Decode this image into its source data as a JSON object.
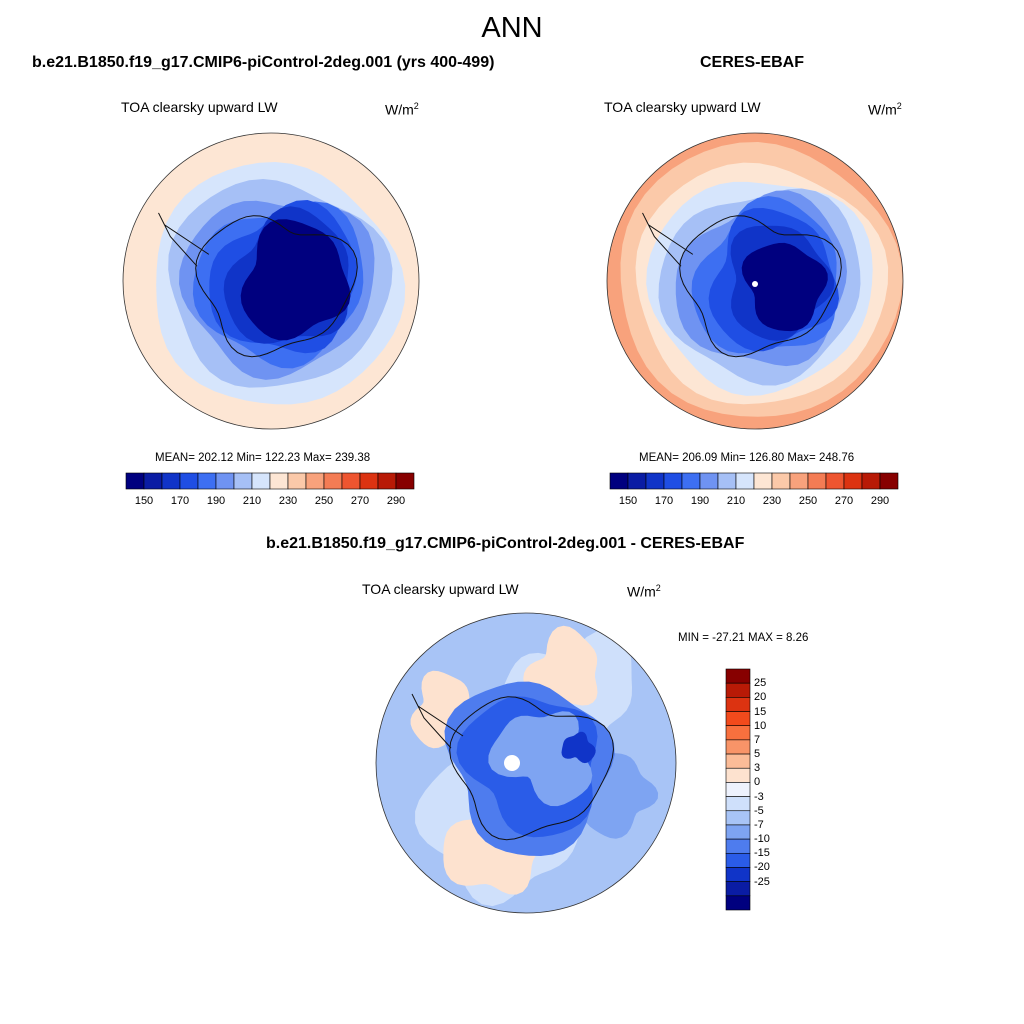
{
  "main_title": "ANN",
  "panels": [
    {
      "title": "b.e21.B1850.f19_g17.CMIP6-piControl-2deg.001 (yrs 400-499)",
      "variable": "TOA clearsky upward LW",
      "units": "W/m",
      "units_sup": "2",
      "stats": "MEAN= 202.12  Min= 122.23  Max= 239.38"
    },
    {
      "title": "CERES-EBAF",
      "variable": "TOA clearsky upward LW",
      "units": "W/m",
      "units_sup": "2",
      "stats": "MEAN= 206.09  Min= 126.80  Max= 248.76"
    },
    {
      "title": "b.e21.B1850.f19_g17.CMIP6-piControl-2deg.001 - CERES-EBAF",
      "variable": "TOA clearsky upward LW",
      "units": "W/m",
      "units_sup": "2",
      "stats": "MIN = -27.21 MAX =   8.26"
    }
  ],
  "chart_data": [
    {
      "type": "heatmap",
      "projection": "south polar stereographic",
      "title": "b.e21.B1850.f19_g17.CMIP6-piControl-2deg.001 (yrs 400-499)",
      "variable": "TOA clearsky upward LW",
      "units": "W/m2",
      "mean": 202.12,
      "min": 122.23,
      "max": 239.38,
      "colorbar_ticks": [
        "150",
        "170",
        "190",
        "210",
        "230",
        "250",
        "270",
        "290"
      ],
      "contour_levels": [
        140,
        150,
        160,
        170,
        180,
        190,
        200,
        210,
        220,
        230,
        240,
        250,
        260,
        270,
        280,
        290
      ],
      "colorbar_colors": [
        "#00007f",
        "#0a1ca4",
        "#1034c8",
        "#1f4ee4",
        "#3d6ff2",
        "#6f93f2",
        "#a6c0f6",
        "#d6e5fc",
        "#fde6d4",
        "#fbc9a9",
        "#f8a27c",
        "#f47c54",
        "#ee5530",
        "#dc3311",
        "#b81a06",
        "#870000"
      ]
    },
    {
      "type": "heatmap",
      "projection": "south polar stereographic",
      "title": "CERES-EBAF",
      "variable": "TOA clearsky upward LW",
      "units": "W/m2",
      "mean": 206.09,
      "min": 126.8,
      "max": 248.76,
      "colorbar_ticks": [
        "150",
        "170",
        "190",
        "210",
        "230",
        "250",
        "270",
        "290"
      ],
      "contour_levels": [
        140,
        150,
        160,
        170,
        180,
        190,
        200,
        210,
        220,
        230,
        240,
        250,
        260,
        270,
        280,
        290
      ],
      "colorbar_colors": [
        "#00007f",
        "#0a1ca4",
        "#1034c8",
        "#1f4ee4",
        "#3d6ff2",
        "#6f93f2",
        "#a6c0f6",
        "#d6e5fc",
        "#fde6d4",
        "#fbc9a9",
        "#f8a27c",
        "#f47c54",
        "#ee5530",
        "#dc3311",
        "#b81a06",
        "#870000"
      ]
    },
    {
      "type": "heatmap",
      "projection": "south polar stereographic",
      "title": "b.e21.B1850.f19_g17.CMIP6-piControl-2deg.001 - CERES-EBAF",
      "variable": "TOA clearsky upward LW",
      "units": "W/m2",
      "min": -27.21,
      "max": 8.26,
      "colorbar_ticks": [
        "25",
        "20",
        "15",
        "10",
        "7",
        "5",
        "3",
        "0",
        "-3",
        "-5",
        "-7",
        "-10",
        "-15",
        "-20",
        "-25"
      ],
      "colorbar_colors": [
        "#870000",
        "#b81a06",
        "#dc3311",
        "#f24a1c",
        "#f8703e",
        "#f89468",
        "#fbbc98",
        "#fde2cf",
        "#eef2fd",
        "#cfe0fb",
        "#a8c4f6",
        "#7ea4f2",
        "#4e7cee",
        "#2a5ce8",
        "#1034c8",
        "#0a1ca4",
        "#00007f"
      ]
    }
  ]
}
